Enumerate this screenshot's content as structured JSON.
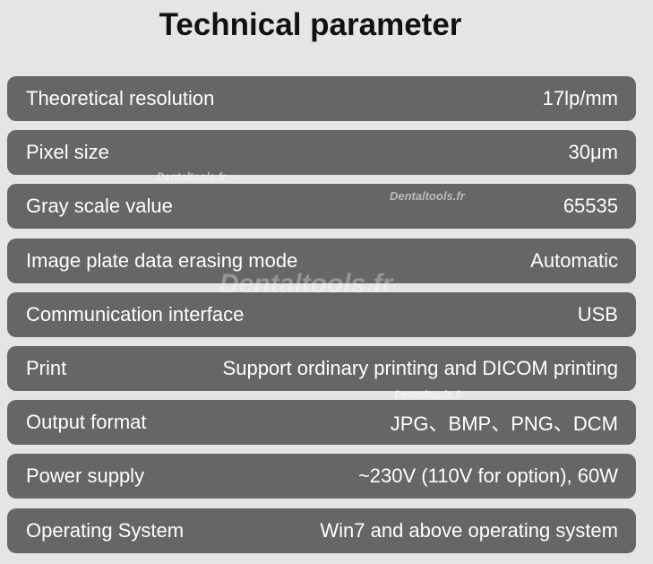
{
  "title": "Technical parameter",
  "rows": [
    {
      "label": "Theoretical resolution",
      "value": "17lp/mm"
    },
    {
      "label": "Pixel size",
      "value": "30μm"
    },
    {
      "label": "Gray scale value",
      "value": "65535"
    },
    {
      "label": "Image plate data erasing mode",
      "value": "Automatic"
    },
    {
      "label": "Communication interface",
      "value": "USB"
    },
    {
      "label": "Print",
      "value": "Support ordinary printing and DICOM printing"
    },
    {
      "label": "Output format",
      "value": "JPG、BMP、PNG、DCM"
    },
    {
      "label": "Power supply",
      "value": "~230V (110V for option), 60W"
    },
    {
      "label": "Operating System",
      "value": "Win7 and above operating system"
    }
  ],
  "watermark": "Dentaltools.fr"
}
